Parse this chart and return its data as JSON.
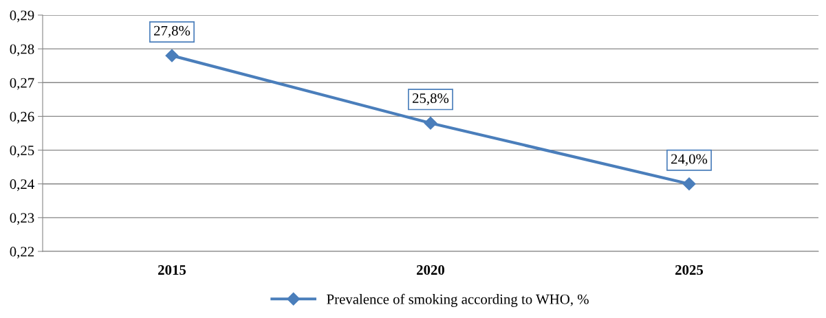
{
  "chart_data": {
    "type": "line",
    "categories": [
      "2015",
      "2020",
      "2025"
    ],
    "series": [
      {
        "name": "Prevalence of smoking according to WHO, %",
        "color": "#4a7ebb",
        "values": [
          0.278,
          0.258,
          0.24
        ],
        "value_labels": [
          "27,8%",
          "25,8%",
          "24,0%"
        ]
      }
    ],
    "ylim": [
      0.22,
      0.29
    ],
    "yticks": [
      {
        "value": 0.22,
        "label": "0,22"
      },
      {
        "value": 0.23,
        "label": "0,23"
      },
      {
        "value": 0.24,
        "label": "0,24"
      },
      {
        "value": 0.25,
        "label": "0,25"
      },
      {
        "value": 0.26,
        "label": "0,26"
      },
      {
        "value": 0.27,
        "label": "0,27"
      },
      {
        "value": 0.28,
        "label": "0,28"
      },
      {
        "value": 0.29,
        "label": "0,29"
      }
    ],
    "grid": "y",
    "legend": "bottom",
    "marker": "diamond",
    "line_style": "solid"
  }
}
